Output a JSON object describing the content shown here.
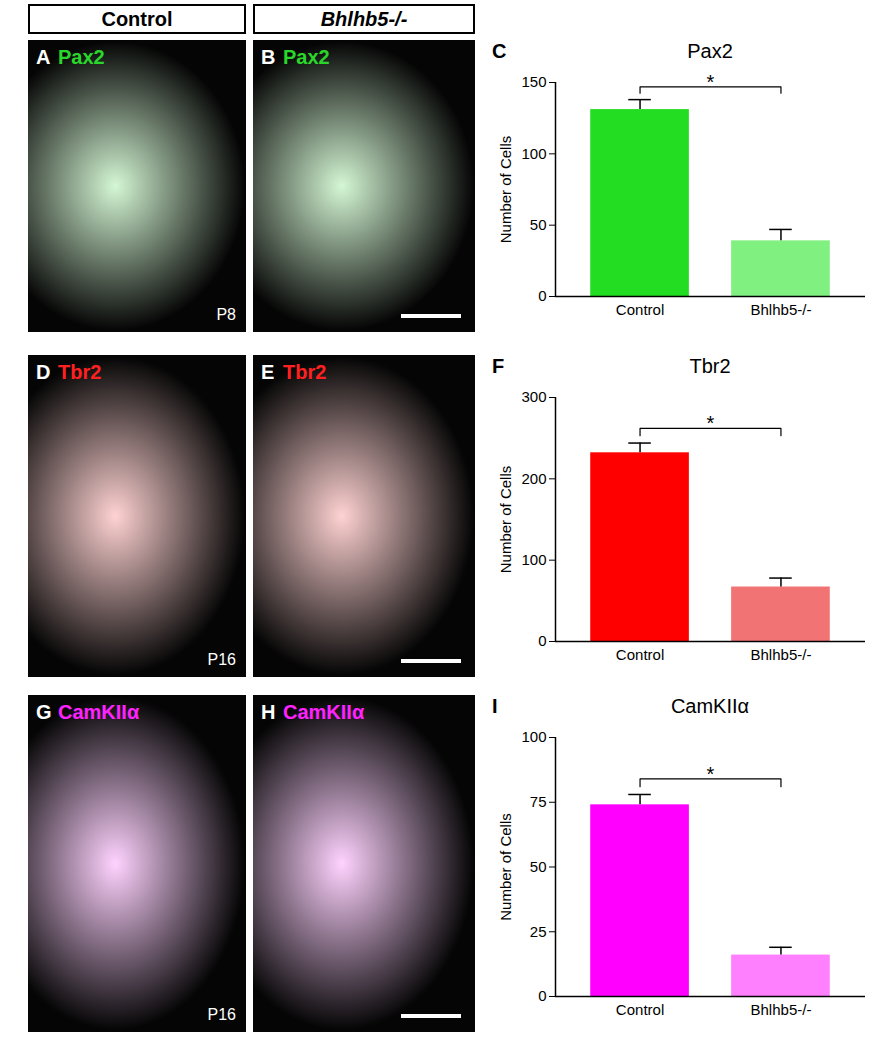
{
  "headers": [
    "Control",
    "Bhlhb5-/-"
  ],
  "panels": [
    {
      "panel_label": "A",
      "marker": "Pax2",
      "color": "#2bd62b",
      "age": "P8"
    },
    {
      "panel_label": "B",
      "marker": "Pax2",
      "color": "#2bd62b"
    },
    {
      "panel_label": "D",
      "marker": "Tbr2",
      "color": "#ff2020",
      "age": "P16"
    },
    {
      "panel_label": "E",
      "marker": "Tbr2",
      "color": "#ff2020"
    },
    {
      "panel_label": "G",
      "marker": "CamKIIα",
      "color": "#ff22ff",
      "age": "P16"
    },
    {
      "panel_label": "H",
      "marker": "CamKIIα",
      "color": "#ff22ff"
    }
  ],
  "chart_data": [
    {
      "type": "bar",
      "panel_label": "C",
      "title": "Pax2",
      "y_label": "Number of Cells",
      "categories": [
        "Control",
        "Bhlhb5-/-"
      ],
      "values": [
        131,
        39
      ],
      "errors": [
        7,
        8
      ],
      "colors": [
        "#22dd22",
        "#80f080"
      ],
      "ylim": [
        0,
        150
      ],
      "yticks": [
        0,
        50,
        100,
        150
      ],
      "significance": {
        "label": "*",
        "between": [
          "Control",
          "Bhlhb5-/-"
        ]
      }
    },
    {
      "type": "bar",
      "panel_label": "F",
      "title": "Tbr2",
      "y_label": "Number of Cells",
      "categories": [
        "Control",
        "Bhlhb5-/-"
      ],
      "values": [
        232,
        67
      ],
      "errors": [
        12,
        11
      ],
      "colors": [
        "#ff0000",
        "#f27373"
      ],
      "ylim": [
        0,
        300
      ],
      "yticks": [
        0,
        100,
        200,
        300
      ],
      "significance": {
        "label": "*",
        "between": [
          "Control",
          "Bhlhb5-/-"
        ]
      }
    },
    {
      "type": "bar",
      "panel_label": "I",
      "title": "CamKIIα",
      "y_label": "Number of Cells",
      "categories": [
        "Control",
        "Bhlhb5-/-"
      ],
      "values": [
        74,
        16
      ],
      "errors": [
        4,
        3
      ],
      "colors": [
        "#ff00ff",
        "#ff80ff"
      ],
      "ylim": [
        0,
        100
      ],
      "yticks": [
        0,
        25,
        50,
        75,
        100
      ],
      "significance": {
        "label": "*",
        "between": [
          "Control",
          "Bhlhb5-/-"
        ]
      }
    }
  ]
}
